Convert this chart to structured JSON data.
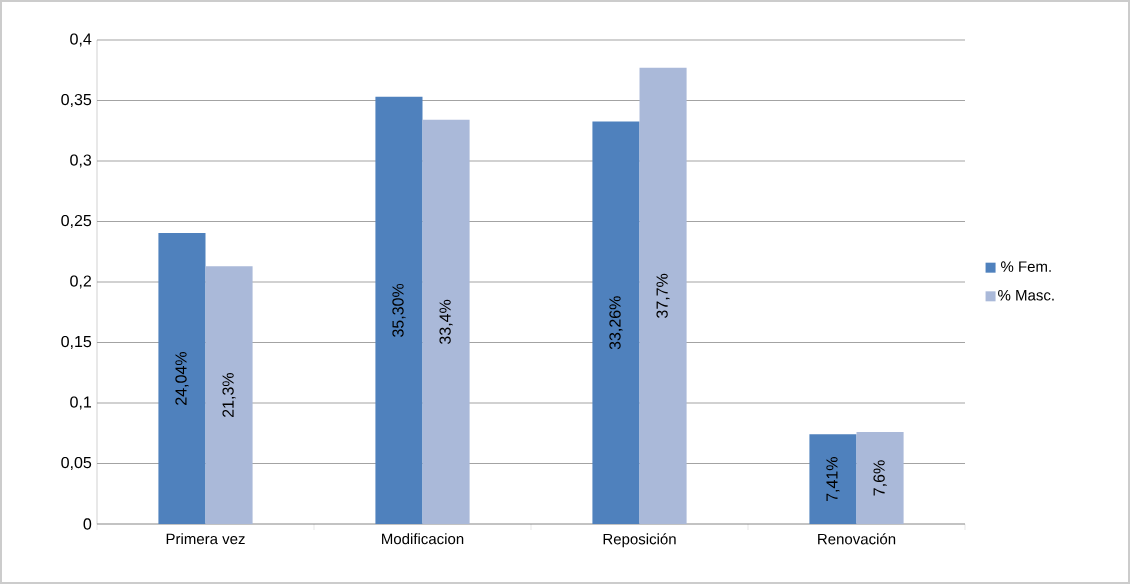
{
  "chart_data": {
    "type": "bar",
    "categories": [
      "Primera vez",
      "Modificacion",
      "Reposición",
      "Renovación"
    ],
    "series": [
      {
        "name": "% Fem.",
        "color": "#4f81bd",
        "values": [
          0.2404,
          0.353,
          0.3326,
          0.0741
        ],
        "value_labels": [
          "24,04%",
          "35,30%",
          "33,26%",
          "7,41%"
        ]
      },
      {
        "name": "% Masc.",
        "color": "#aab9d9",
        "values": [
          0.213,
          0.334,
          0.377,
          0.076
        ],
        "value_labels": [
          "21,3%",
          "33,4%",
          "37,7%",
          "7,6%"
        ]
      }
    ],
    "ylim": [
      0,
      0.4
    ],
    "yticks": [
      {
        "value": 0,
        "label": "0"
      },
      {
        "value": 0.05,
        "label": "0,05"
      },
      {
        "value": 0.1,
        "label": "0,1"
      },
      {
        "value": 0.15,
        "label": "0,15"
      },
      {
        "value": 0.2,
        "label": "0,2"
      },
      {
        "value": 0.25,
        "label": "0,25"
      },
      {
        "value": 0.3,
        "label": "0,3"
      },
      {
        "value": 0.35,
        "label": "0,35"
      },
      {
        "value": 0.4,
        "label": "0,4"
      }
    ],
    "grid": "y",
    "legend": "right"
  }
}
